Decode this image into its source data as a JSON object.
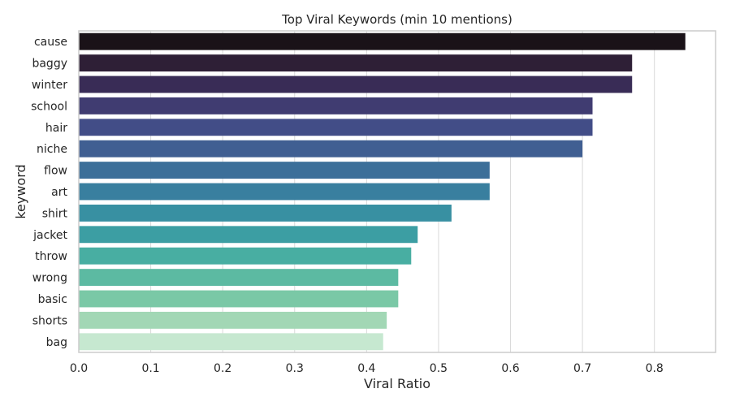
{
  "chart_data": {
    "type": "bar",
    "orientation": "horizontal",
    "title": "Top Viral Keywords (min 10 mentions)",
    "xlabel": "Viral Ratio",
    "ylabel": "keyword",
    "xlim": [
      0.0,
      0.885
    ],
    "xticks": [
      "0.0",
      "0.1",
      "0.2",
      "0.3",
      "0.4",
      "0.5",
      "0.6",
      "0.7",
      "0.8"
    ],
    "grid": true,
    "categories": [
      "cause",
      "baggy",
      "winter",
      "school",
      "hair",
      "niche",
      "flow",
      "art",
      "shirt",
      "jacket",
      "throw",
      "wrong",
      "basic",
      "shorts",
      "bag"
    ],
    "values": [
      0.843,
      0.769,
      0.769,
      0.714,
      0.714,
      0.7,
      0.571,
      0.571,
      0.518,
      0.471,
      0.462,
      0.444,
      0.444,
      0.428,
      0.423
    ],
    "colors": [
      "#1a1218",
      "#2e1f36",
      "#392c56",
      "#403c71",
      "#424d87",
      "#405f92",
      "#3c6f99",
      "#397f9f",
      "#3890a2",
      "#3c9ea3",
      "#48aea2",
      "#5cbaa2",
      "#7ac8a6",
      "#a2d7b5",
      "#c6e8d0"
    ]
  }
}
